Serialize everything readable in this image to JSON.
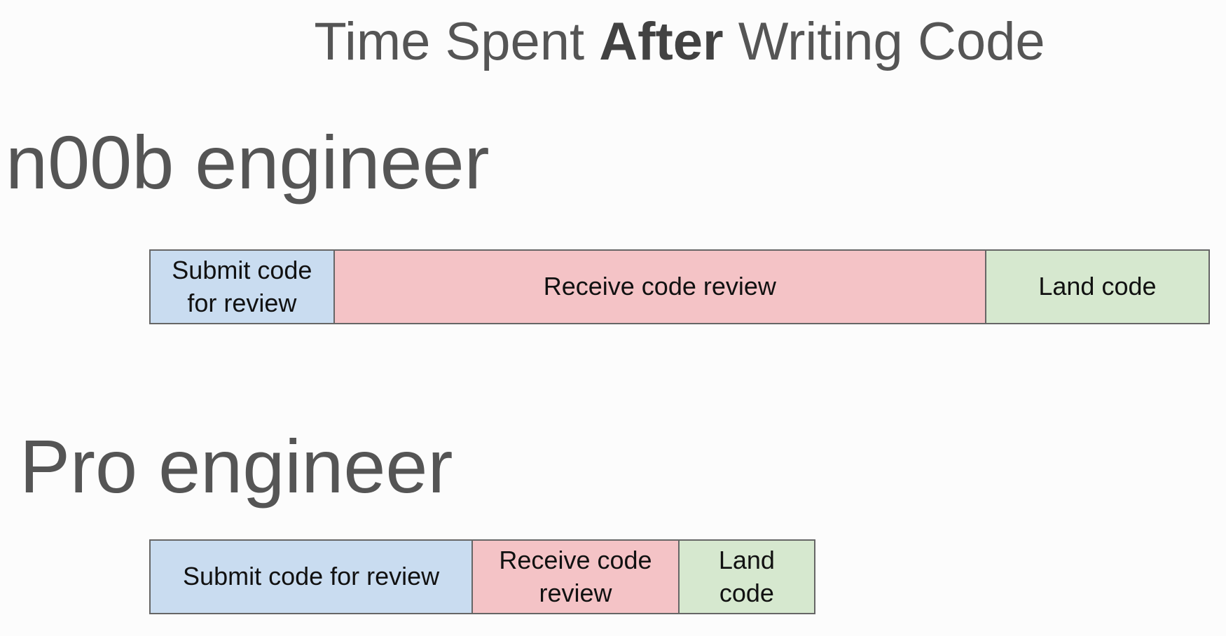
{
  "title": {
    "prefix": "Time Spent ",
    "emphasis": "After",
    "suffix": " Writing Code"
  },
  "colors": {
    "submit": "#c9dcf0",
    "receive": "#f4c3c6",
    "land": "#d6e8cf",
    "border": "#666666",
    "text": "#555555"
  },
  "rows": [
    {
      "label": "n00b engineer",
      "segments": [
        {
          "label": "Submit code for review",
          "share": 0.174,
          "color": "#c9dcf0"
        },
        {
          "label": "Receive code review",
          "share": 0.616,
          "color": "#f4c3c6"
        },
        {
          "label": "Land code",
          "share": 0.21,
          "color": "#d6e8cf"
        }
      ]
    },
    {
      "label": "Pro engineer",
      "segments": [
        {
          "label": "Submit code for review",
          "share": 0.486,
          "color": "#c9dcf0"
        },
        {
          "label": "Receive code review",
          "share": 0.311,
          "color": "#f4c3c6"
        },
        {
          "label": "Land code",
          "share": 0.203,
          "color": "#d6e8cf"
        }
      ]
    }
  ]
}
